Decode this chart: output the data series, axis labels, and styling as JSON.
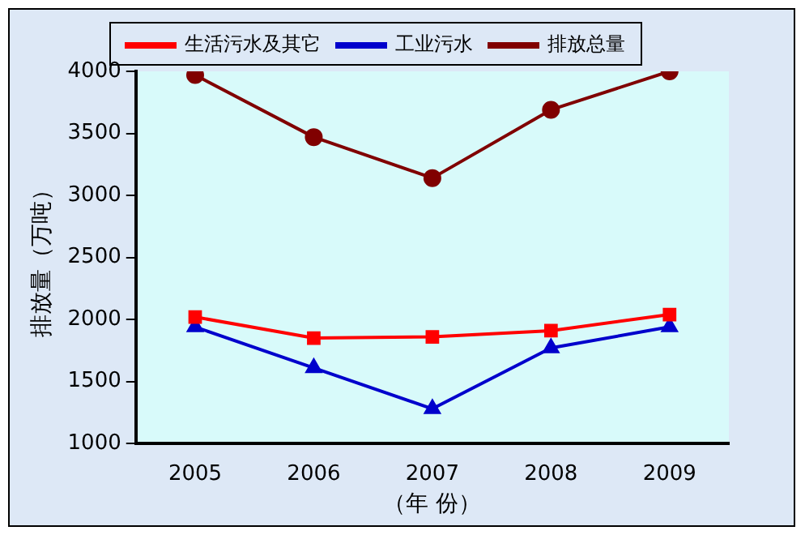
{
  "chart_data": {
    "type": "line",
    "xlabel": "（年 份）",
    "ylabel": "排放量（万吨）",
    "categories": [
      "2005",
      "2006",
      "2007",
      "2008",
      "2009"
    ],
    "series": [
      {
        "name": "生活污水及其它",
        "color": "#ff0000",
        "marker": "square",
        "values": [
          2020,
          1850,
          1860,
          1910,
          2040
        ]
      },
      {
        "name": "工业污水",
        "color": "#0000cc",
        "marker": "triangle",
        "values": [
          1940,
          1610,
          1280,
          1770,
          1940
        ]
      },
      {
        "name": "排放总量",
        "color": "#800000",
        "marker": "circle",
        "values": [
          3970,
          3470,
          3140,
          3690,
          4000
        ]
      }
    ],
    "ylim": [
      1000,
      4000
    ],
    "yticks": [
      1000,
      1500,
      2000,
      2500,
      3000,
      3500,
      4000
    ],
    "grid": false,
    "legend": "top"
  }
}
